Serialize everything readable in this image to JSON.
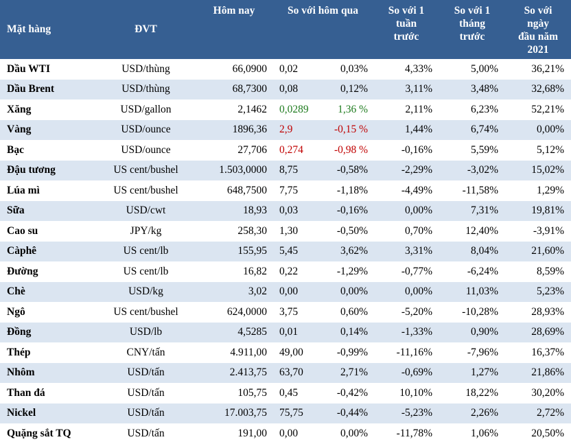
{
  "colors": {
    "header_bg": "#365f92",
    "stripe_bg": "#dbe5f1",
    "up": "#1e7b1e",
    "down": "#c00000"
  },
  "headers": {
    "name": "Mặt hàng",
    "unit": "ĐVT",
    "today": "Hôm nay",
    "vs_prev_day": "So với hôm qua",
    "vs_1_week": [
      "So với 1",
      "tuần",
      "trước"
    ],
    "vs_1_month": [
      "So với 1",
      "tháng",
      "trước"
    ],
    "vs_ytd": [
      "So với",
      "ngày",
      "đầu năm",
      "2021"
    ]
  },
  "rows": [
    {
      "name": "Dầu WTI",
      "unit": "USD/thùng",
      "today": "66,0900",
      "diff": "0,02",
      "pct": "0,03%",
      "w1": "4,33%",
      "m1": "5,00%",
      "ytd": "36,21%",
      "trend": ""
    },
    {
      "name": "Dầu Brent",
      "unit": "USD/thùng",
      "today": "68,7300",
      "diff": "0,08",
      "pct": "0,12%",
      "w1": "3,11%",
      "m1": "3,48%",
      "ytd": "32,68%",
      "trend": ""
    },
    {
      "name": "Xăng",
      "unit": "USD/gallon",
      "today": "2,1462",
      "diff": "0,0289",
      "pct": "1,36 %",
      "w1": "2,11%",
      "m1": "6,23%",
      "ytd": "52,21%",
      "trend": "up"
    },
    {
      "name": "Vàng",
      "unit": "USD/ounce",
      "today": "1896,36",
      "diff": "2,9",
      "pct": "-0,15 %",
      "w1": "1,44%",
      "m1": "6,74%",
      "ytd": "0,00%",
      "trend": "down"
    },
    {
      "name": "Bạc",
      "unit": "USD/ounce",
      "today": "27,706",
      "diff": "0,274",
      "pct": "-0,98 %",
      "w1": "-0,16%",
      "m1": "5,59%",
      "ytd": "5,12%",
      "trend": "down"
    },
    {
      "name": "Đậu tương",
      "unit": "US cent/bushel",
      "today": "1.503,0000",
      "diff": "8,75",
      "pct": "-0,58%",
      "w1": "-2,29%",
      "m1": "-3,02%",
      "ytd": "15,02%",
      "trend": ""
    },
    {
      "name": "Lúa mì",
      "unit": "US cent/bushel",
      "today": "648,7500",
      "diff": "7,75",
      "pct": "-1,18%",
      "w1": "-4,49%",
      "m1": "-11,58%",
      "ytd": "1,29%",
      "trend": ""
    },
    {
      "name": "Sữa",
      "unit": "USD/cwt",
      "today": "18,93",
      "diff": "0,03",
      "pct": "-0,16%",
      "w1": "0,00%",
      "m1": "7,31%",
      "ytd": "19,81%",
      "trend": ""
    },
    {
      "name": "Cao su",
      "unit": "JPY/kg",
      "today": "258,30",
      "diff": "1,30",
      "pct": "-0,50%",
      "w1": "0,70%",
      "m1": "12,40%",
      "ytd": "-3,91%",
      "trend": ""
    },
    {
      "name": "Càphê",
      "unit": "US cent/lb",
      "today": "155,95",
      "diff": "5,45",
      "pct": "3,62%",
      "w1": "3,31%",
      "m1": "8,04%",
      "ytd": "21,60%",
      "trend": ""
    },
    {
      "name": "Đường",
      "unit": "US cent/lb",
      "today": "16,82",
      "diff": "0,22",
      "pct": "-1,29%",
      "w1": "-0,77%",
      "m1": "-6,24%",
      "ytd": "8,59%",
      "trend": ""
    },
    {
      "name": "Chè",
      "unit": "USD/kg",
      "today": "3,02",
      "diff": "0,00",
      "pct": "0,00%",
      "w1": "0,00%",
      "m1": "11,03%",
      "ytd": "5,23%",
      "trend": ""
    },
    {
      "name": "Ngô",
      "unit": "US cent/bushel",
      "today": "624,0000",
      "diff": "3,75",
      "pct": "0,60%",
      "w1": "-5,20%",
      "m1": "-10,28%",
      "ytd": "28,93%",
      "trend": ""
    },
    {
      "name": "Đồng",
      "unit": "USD/lb",
      "today": "4,5285",
      "diff": "0,01",
      "pct": "0,14%",
      "w1": "-1,33%",
      "m1": "0,90%",
      "ytd": "28,69%",
      "trend": ""
    },
    {
      "name": "Thép",
      "unit": "CNY/tấn",
      "today": "4.911,00",
      "diff": "49,00",
      "pct": "-0,99%",
      "w1": "-11,16%",
      "m1": "-7,96%",
      "ytd": "16,37%",
      "trend": ""
    },
    {
      "name": "Nhôm",
      "unit": "USD/tấn",
      "today": "2.413,75",
      "diff": "63,70",
      "pct": "2,71%",
      "w1": "-0,69%",
      "m1": "1,27%",
      "ytd": "21,86%",
      "trend": ""
    },
    {
      "name": "Than đá",
      "unit": "USD/tấn",
      "today": "105,75",
      "diff": "0,45",
      "pct": "-0,42%",
      "w1": "10,10%",
      "m1": "18,22%",
      "ytd": "30,20%",
      "trend": ""
    },
    {
      "name": "Nickel",
      "unit": "USD/tấn",
      "today": "17.003,75",
      "diff": "75,75",
      "pct": "-0,44%",
      "w1": "-5,23%",
      "m1": "2,26%",
      "ytd": "2,72%",
      "trend": ""
    },
    {
      "name": "Quặng sắt TQ",
      "unit": "USD/tấn",
      "today": "191,00",
      "diff": "0,00",
      "pct": "0,00%",
      "w1": "-11,78%",
      "m1": "1,06%",
      "ytd": "20,50%",
      "trend": ""
    }
  ]
}
